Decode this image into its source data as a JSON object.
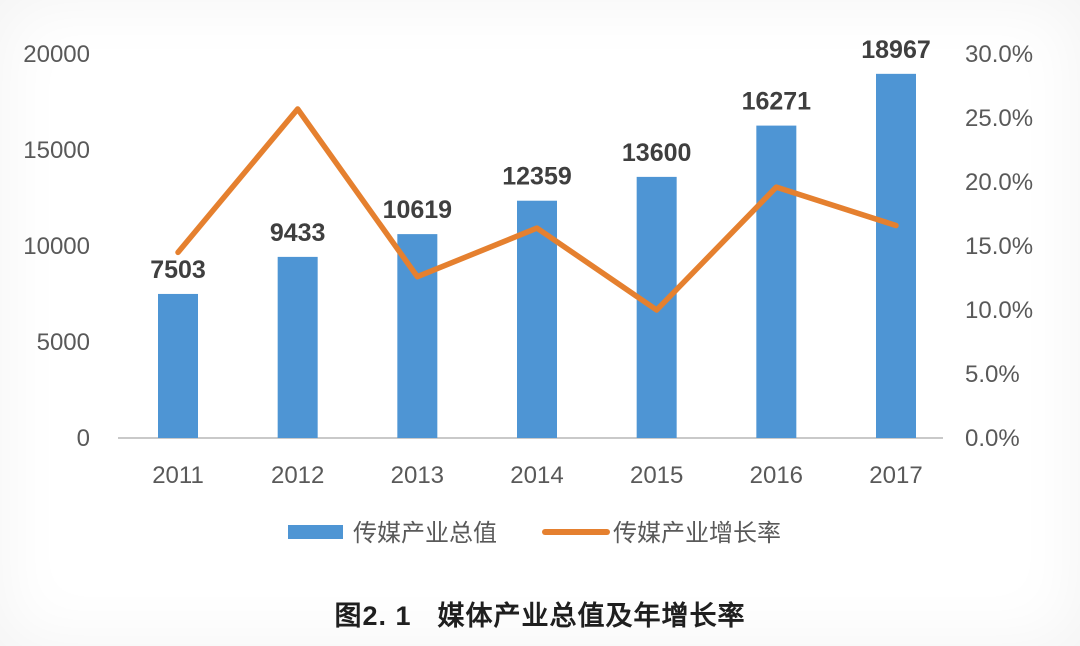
{
  "figure": {
    "caption": {
      "prefix": "图2. 1",
      "text": "媒体产业总值及年增长率"
    }
  },
  "chart_data": {
    "type": "combo-bar-line",
    "title": "",
    "categories": [
      "2011",
      "2012",
      "2013",
      "2014",
      "2015",
      "2016",
      "2017"
    ],
    "series": [
      {
        "name": "传媒产业总值",
        "type": "bar",
        "axis": "left",
        "color": "#4E95D4",
        "values": [
          7503,
          9433,
          10619,
          12359,
          13600,
          16271,
          18967
        ],
        "data_labels_visible": true
      },
      {
        "name": "传媒产业增长率",
        "type": "line",
        "axis": "right",
        "color": "#E5802F",
        "unit": "%",
        "values": [
          14.5,
          25.7,
          12.6,
          16.4,
          10.0,
          19.6,
          16.6
        ],
        "data_labels_visible": false
      }
    ],
    "left_axis": {
      "ticks": [
        "0",
        "5000",
        "10000",
        "15000",
        "20000"
      ],
      "min": 0,
      "max": 20000
    },
    "right_axis": {
      "ticks": [
        "0.0%",
        "5.0%",
        "10.0%",
        "15.0%",
        "20.0%",
        "25.0%",
        "30.0%"
      ],
      "min": 0,
      "max": 30
    },
    "grid": false,
    "legend_position": "bottom",
    "colors": {
      "axis_line": "#c9c9c9",
      "tick_label": "#595959",
      "data_label": "#3f3f3f",
      "legend_label": "#595959"
    }
  }
}
